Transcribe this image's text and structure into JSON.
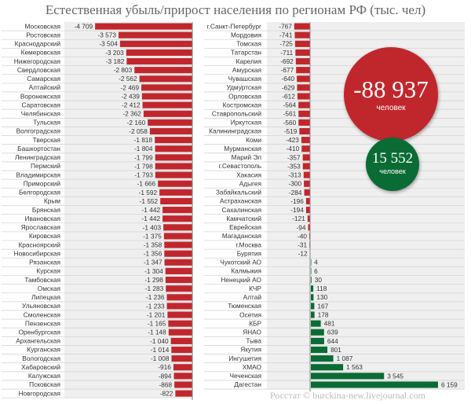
{
  "title": "Естественная убыль/прирост населения по регионам РФ (тыс. чел)",
  "credit": "Росстат © burckina-new.livejournal.com",
  "totals": {
    "decline": "-88 937",
    "decline_unit": "человек",
    "growth": "15 552",
    "growth_unit": "человек"
  },
  "colors": {
    "negative": "#c0272d",
    "positive": "#0b6b35",
    "panel": "#efefef"
  },
  "chart_data": {
    "type": "bar",
    "orientation": "horizontal",
    "title": "Естественная убыль/прирост населения по регионам РФ (тыс. чел)",
    "columns": [
      {
        "categories": [
          "Московская",
          "Ростовская",
          "Краснодарский",
          "Кемеровская",
          "Нижегородская",
          "Свердловская",
          "Самарская",
          "Алтайский",
          "Воронежская",
          "Саратовская",
          "Челябинская",
          "Тульская",
          "Волгоградская",
          "Тверская",
          "Башкортостан",
          "Ленинградская",
          "Пермский",
          "Владимирская",
          "Приморский",
          "Белгородская",
          "Крым",
          "Брянская",
          "Ивановская",
          "Ярославская",
          "Кировская",
          "Красноярский",
          "Новосибирская",
          "Рязанская",
          "Курская",
          "Тамбовская",
          "Омская",
          "Липецкая",
          "Ульяновская",
          "Смоленская",
          "Пензенская",
          "Оренбургская",
          "Архангельская",
          "Курганская",
          "Вологодская",
          "Хабаровский",
          "Калужская",
          "Псковская",
          "Новгородская"
        ],
        "values": [
          -4709,
          -3573,
          -3504,
          -3203,
          -3182,
          -2803,
          -2562,
          -2469,
          -2439,
          -2412,
          -2362,
          -2160,
          -2058,
          -1818,
          -1804,
          -1799,
          -1798,
          -1793,
          -1666,
          -1592,
          -1552,
          -1442,
          -1442,
          -1403,
          -1375,
          -1358,
          -1356,
          -1347,
          -1304,
          -1298,
          -1283,
          -1236,
          -1233,
          -1201,
          -1165,
          -1148,
          -1040,
          -1014,
          -1008,
          -916,
          -894,
          -868,
          -822
        ],
        "labels": [
          "-4 709",
          "-3 573",
          "-3 504",
          "-3 203",
          "-3 182",
          "-2 803",
          "-2 562",
          "-2 469",
          "-2 439",
          "-2 412",
          "-2 362",
          "-2 160",
          "-2 058",
          "-1 818",
          "-1 804",
          "-1 799",
          "-1 798",
          "-1 793",
          "-1 666",
          "-1 592",
          "-1 552",
          "-1 442",
          "-1 442",
          "-1 403",
          "-1 375",
          "-1 358",
          "-1 356",
          "-1 347",
          "-1 304",
          "-1 298",
          "-1 283",
          "-1 236",
          "-1 233",
          "-1 201",
          "-1 165",
          "-1 148",
          "-1 040",
          "-1 014",
          "-1 008",
          "-916",
          "-894",
          "-868",
          "-822"
        ]
      },
      {
        "categories": [
          "г.Санкт-Петербург",
          "Мордовия",
          "Томская",
          "Татарстан",
          "Карелия",
          "Амурская",
          "Чувашская",
          "Удмуртская",
          "Орловская",
          "Костромская",
          "Ставропольский",
          "Иркутская",
          "Калининградская",
          "Коми",
          "Мурманская",
          "Марий Эл",
          "г.Севастополь",
          "Хакасия",
          "Адыгея",
          "Забайкальский",
          "Астраханская",
          "Сахалинская",
          "Камчатский",
          "Еврейская",
          "Магаданская",
          "г.Москва",
          "Бурятия",
          "Чукотский АО",
          "Калмыкия",
          "Ненецкий АО",
          "КЧР",
          "Алтай",
          "Тюменская",
          "Осетия",
          "КБР",
          "ЯНАО",
          "Тыва",
          "Якутия",
          "Ингушетия",
          "ХМАО",
          "Чеченская",
          "Дагестан"
        ],
        "values": [
          -767,
          -741,
          -725,
          -711,
          -692,
          -677,
          -640,
          -629,
          -612,
          -564,
          -561,
          -560,
          -519,
          -423,
          -410,
          -357,
          -353,
          -313,
          -300,
          -284,
          -196,
          -194,
          -121,
          -94,
          -40,
          -31,
          -12,
          4,
          6,
          30,
          118,
          130,
          167,
          178,
          481,
          639,
          644,
          801,
          1087,
          1563,
          3545,
          6159
        ],
        "labels": [
          "-767",
          "-741",
          "-725",
          "-711",
          "-692",
          "-677",
          "-640",
          "-629",
          "-612",
          "-564",
          "-561",
          "-560",
          "-519",
          "-423",
          "-410",
          "-357",
          "-353",
          "-313",
          "-300",
          "-284",
          "-196",
          "-194",
          "-121",
          "-94",
          "-40",
          "-31",
          "-12",
          "4",
          "6",
          "30",
          "118",
          "130",
          "167",
          "178",
          "481",
          "639",
          "644",
          "801",
          "1 087",
          "1 563",
          "3 545",
          "6 159"
        ]
      }
    ]
  }
}
